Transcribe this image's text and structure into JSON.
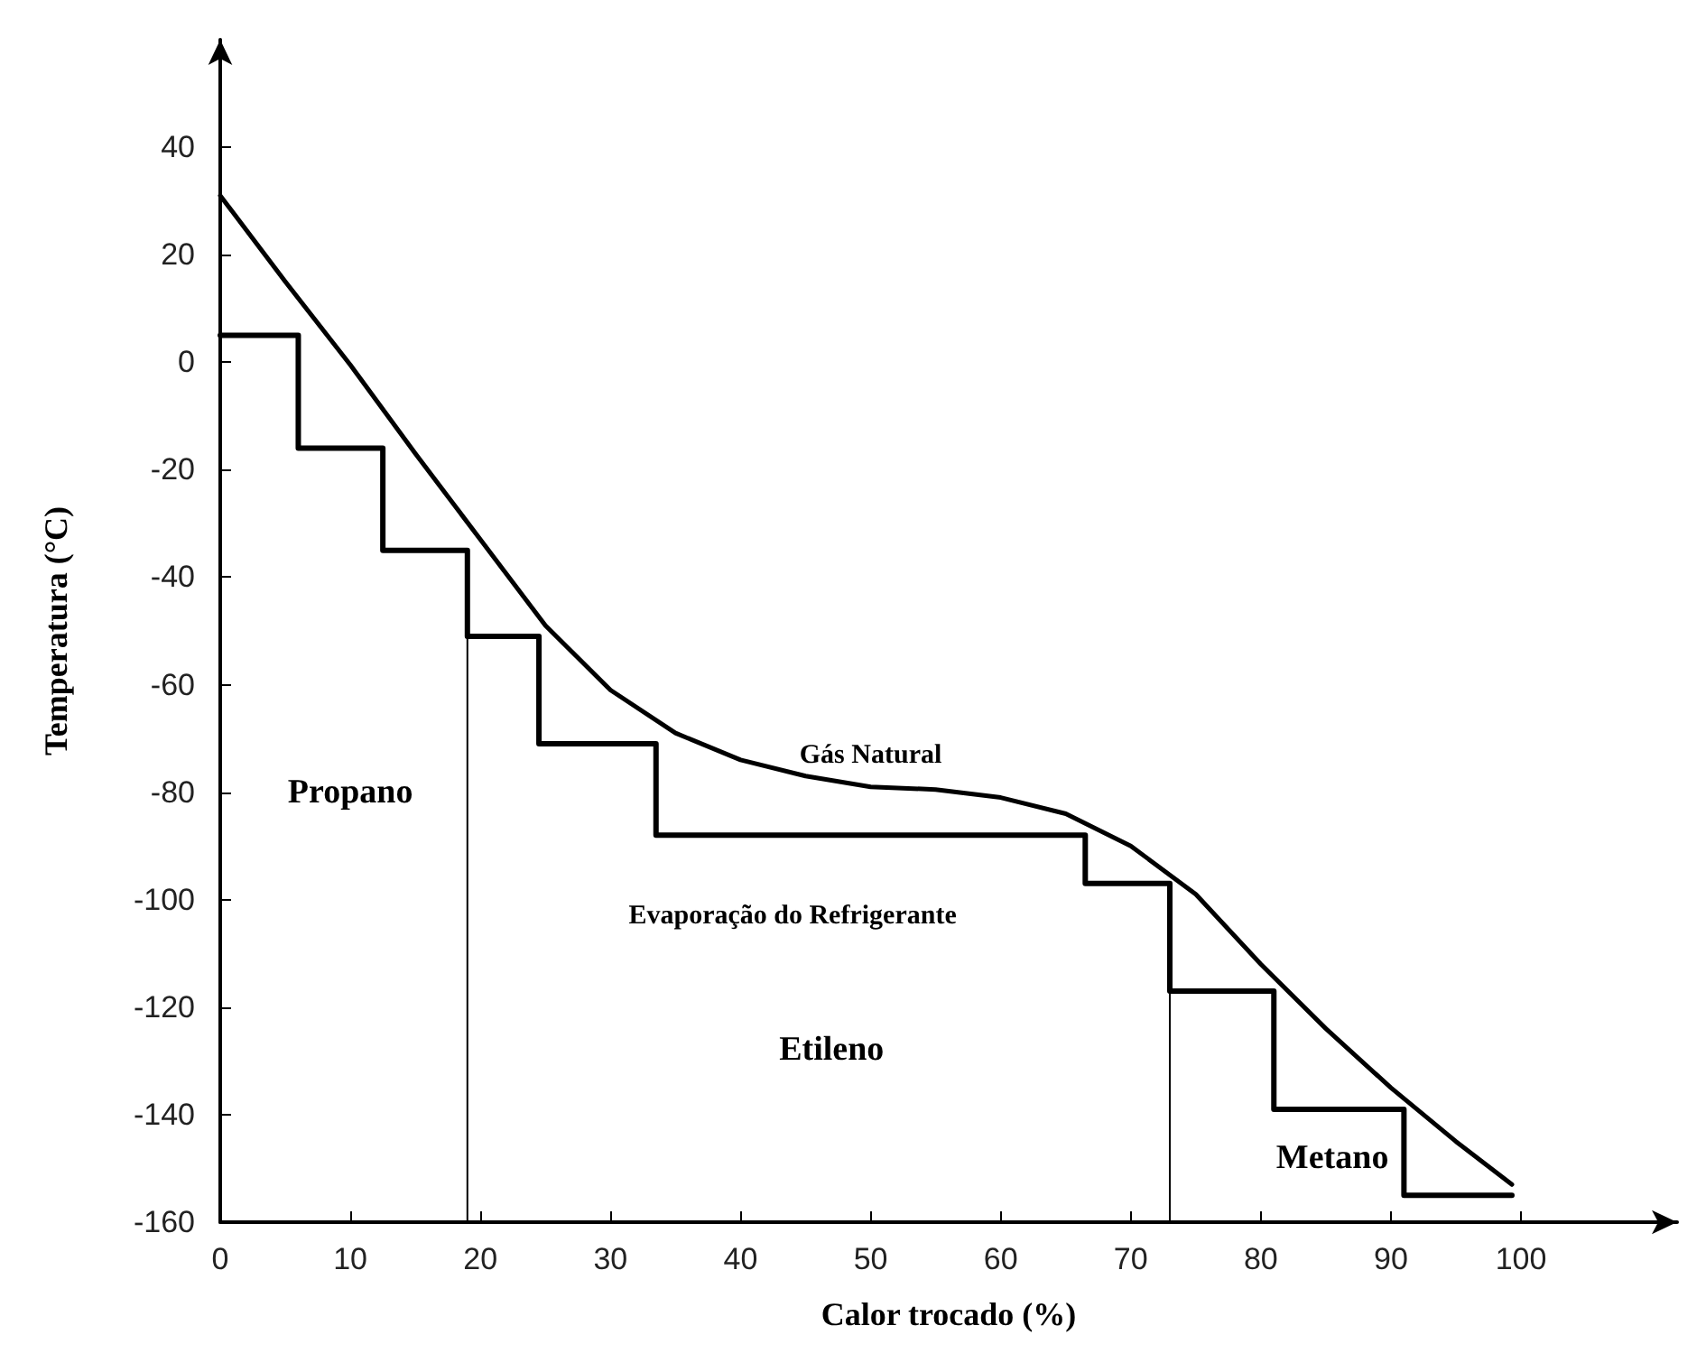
{
  "chart_data": {
    "type": "line",
    "xlabel": "Calor trocado (%)",
    "ylabel": "Temperatura (°C)",
    "xlim": [
      0,
      112
    ],
    "ylim": [
      -160,
      60
    ],
    "xticks": [
      0,
      10,
      20,
      30,
      40,
      50,
      60,
      70,
      80,
      90,
      100
    ],
    "yticks": [
      -160,
      -140,
      -120,
      -100,
      -80,
      -60,
      -40,
      -20,
      0,
      20,
      40
    ],
    "grid": false,
    "legend": false,
    "marker": "none",
    "line_style": "solid",
    "series": [
      {
        "name": "Gás Natural",
        "color": "#000000",
        "x": [
          0,
          5,
          10,
          15,
          20,
          25,
          30,
          35,
          40,
          45,
          50,
          55,
          60,
          65,
          70,
          75,
          80,
          85,
          90,
          95,
          99.3
        ],
        "values": [
          31,
          15,
          -0.5,
          -17,
          -33,
          -49,
          -61,
          -69,
          -74,
          -77,
          -79,
          -79.5,
          -81,
          -84,
          -90,
          -99,
          -112,
          -124,
          -135,
          -145,
          -153
        ]
      },
      {
        "type": "step",
        "color": "#000000",
        "x": [
          0,
          6,
          12.5,
          19,
          24.5,
          33.5,
          66.5,
          73,
          81,
          91,
          99.3
        ],
        "values": [
          5,
          -16,
          -35,
          -51,
          -71,
          -88,
          -97,
          -117,
          -139,
          -155,
          -155
        ]
      },
      {
        "color": "#000000",
        "x": [
          19,
          19
        ],
        "values": [
          -51,
          -160
        ]
      },
      {
        "color": "#000000",
        "x": [
          73,
          73
        ],
        "values": [
          -117,
          -160
        ]
      }
    ],
    "annotations": [
      "Propano",
      "Etileno",
      "Metano",
      "Evaporação do Refrigerante"
    ]
  }
}
